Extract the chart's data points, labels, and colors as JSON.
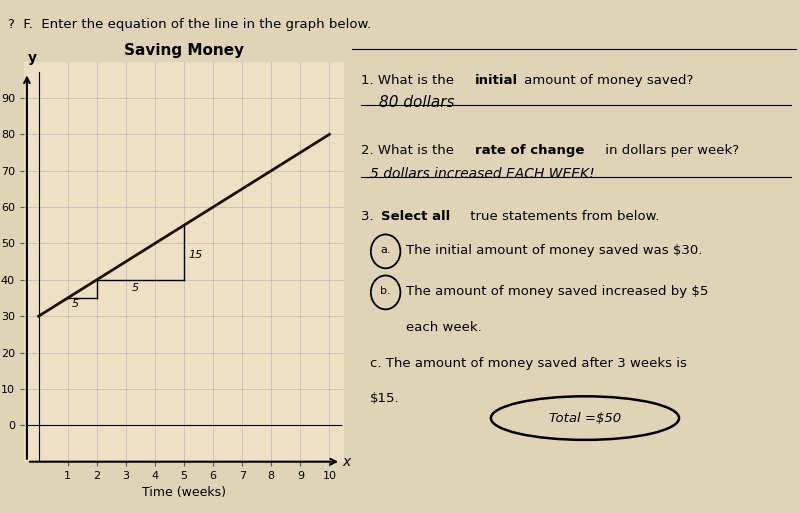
{
  "title": "Saving Money",
  "xlabel": "Time (weeks)",
  "ylabel": "y",
  "xlim": [
    -0.5,
    10.5
  ],
  "ylim": [
    -10,
    100
  ],
  "xticks": [
    1,
    2,
    3,
    4,
    5,
    6,
    7,
    8,
    9,
    10
  ],
  "yticks": [
    0,
    10,
    20,
    30,
    40,
    50,
    60,
    70,
    80,
    90
  ],
  "line_slope": 5,
  "line_intercept": 30,
  "x_line_start": 0,
  "x_line_end": 10,
  "bg_color": "#e0d4b8",
  "paper_color": "#ede0c4",
  "grid_color": "#aaaaaa",
  "line_color": "#1a1000",
  "header_text": "?  F.  Enter the equation of the line in the graph below.",
  "q1_answer": "80 dollars",
  "q2_answer": "5 dollars increased EACH WEEK!",
  "total_text": "Total =$50",
  "slope_label1": "5",
  "slope_label2": "15",
  "run_label": "5"
}
